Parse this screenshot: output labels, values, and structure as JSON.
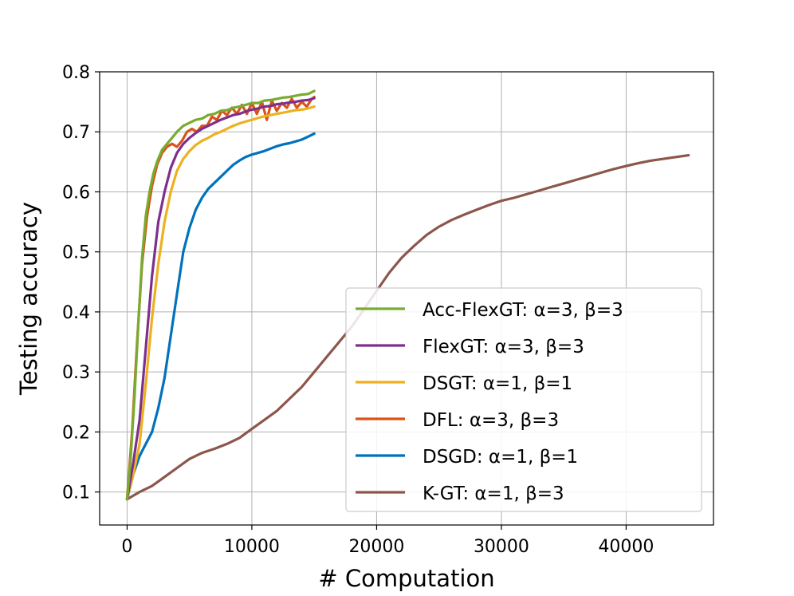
{
  "chart_data": {
    "type": "line",
    "title": "",
    "xlabel": "# Computation",
    "ylabel": "Testing accuracy",
    "xlim": [
      -2200,
      47000
    ],
    "ylim": [
      0.045,
      0.8
    ],
    "xticks": [
      0,
      10000,
      20000,
      30000,
      40000
    ],
    "xtick_labels": [
      "0",
      "10000",
      "20000",
      "30000",
      "40000"
    ],
    "yticks": [
      0.1,
      0.2,
      0.3,
      0.4,
      0.5,
      0.6,
      0.7,
      0.8
    ],
    "ytick_labels": [
      "0.1",
      "0.2",
      "0.3",
      "0.4",
      "0.5",
      "0.6",
      "0.7",
      "0.8"
    ],
    "grid": true,
    "legend_position": "bottom-right",
    "series": [
      {
        "name": "Acc-FlexGT",
        "legend_label": "Acc-FlexGT: α=3, β=3",
        "color": "#77ac30",
        "x": [
          0,
          300,
          600,
          900,
          1200,
          1500,
          1800,
          2100,
          2400,
          2800,
          3200,
          3600,
          4000,
          4500,
          5000,
          5500,
          6000,
          6500,
          7000,
          7500,
          8000,
          8500,
          9000,
          9500,
          10000,
          10500,
          11000,
          11500,
          12000,
          12500,
          13000,
          13500,
          14000,
          14500,
          15000
        ],
        "y": [
          0.088,
          0.16,
          0.26,
          0.38,
          0.49,
          0.56,
          0.6,
          0.63,
          0.65,
          0.67,
          0.68,
          0.69,
          0.7,
          0.71,
          0.715,
          0.72,
          0.722,
          0.728,
          0.73,
          0.735,
          0.736,
          0.74,
          0.742,
          0.745,
          0.748,
          0.748,
          0.752,
          0.753,
          0.755,
          0.757,
          0.758,
          0.76,
          0.762,
          0.763,
          0.768
        ]
      },
      {
        "name": "FlexGT",
        "legend_label": "FlexGT: α=3, β=3",
        "color": "#7e2f8e",
        "x": [
          0,
          500,
          1000,
          1500,
          2000,
          2500,
          3000,
          3500,
          4000,
          4500,
          5000,
          5500,
          6000,
          6500,
          7000,
          7500,
          8000,
          8500,
          9000,
          9500,
          10000,
          10500,
          11000,
          11500,
          12000,
          12500,
          13000,
          13500,
          14000,
          14500,
          15000
        ],
        "y": [
          0.088,
          0.15,
          0.22,
          0.34,
          0.46,
          0.55,
          0.6,
          0.64,
          0.665,
          0.68,
          0.69,
          0.698,
          0.705,
          0.71,
          0.715,
          0.72,
          0.724,
          0.728,
          0.73,
          0.734,
          0.737,
          0.739,
          0.742,
          0.743,
          0.746,
          0.747,
          0.749,
          0.75,
          0.752,
          0.753,
          0.756
        ]
      },
      {
        "name": "DSGT",
        "legend_label": "DSGT: α=1, β=1",
        "color": "#edb120",
        "x": [
          0,
          500,
          1000,
          1500,
          2000,
          2500,
          3000,
          3500,
          4000,
          4500,
          5000,
          5500,
          6000,
          6500,
          7000,
          7500,
          8000,
          8500,
          9000,
          9500,
          10000,
          10500,
          11000,
          11500,
          12000,
          12500,
          13000,
          13500,
          14000,
          14500,
          15000
        ],
        "y": [
          0.088,
          0.13,
          0.18,
          0.28,
          0.39,
          0.48,
          0.55,
          0.6,
          0.635,
          0.655,
          0.668,
          0.678,
          0.685,
          0.69,
          0.696,
          0.7,
          0.705,
          0.71,
          0.714,
          0.717,
          0.72,
          0.723,
          0.726,
          0.728,
          0.73,
          0.732,
          0.734,
          0.736,
          0.737,
          0.739,
          0.742
        ]
      },
      {
        "name": "DFL",
        "legend_label": "DFL: α=3, β=3",
        "color": "#d95319",
        "x": [
          0,
          400,
          800,
          1200,
          1600,
          2000,
          2400,
          2800,
          3200,
          3600,
          4000,
          4400,
          4800,
          5200,
          5600,
          6000,
          6400,
          6800,
          7200,
          7600,
          8000,
          8400,
          8800,
          9200,
          9600,
          10000,
          10400,
          10800,
          11200,
          11600,
          12000,
          12400,
          12800,
          13200,
          13600,
          14000,
          14400,
          14800,
          15000
        ],
        "y": [
          0.088,
          0.2,
          0.35,
          0.48,
          0.56,
          0.61,
          0.645,
          0.665,
          0.675,
          0.68,
          0.675,
          0.685,
          0.7,
          0.705,
          0.7,
          0.71,
          0.71,
          0.725,
          0.72,
          0.735,
          0.728,
          0.74,
          0.73,
          0.745,
          0.73,
          0.748,
          0.73,
          0.75,
          0.72,
          0.752,
          0.735,
          0.748,
          0.74,
          0.755,
          0.74,
          0.75,
          0.742,
          0.755,
          0.758
        ]
      },
      {
        "name": "DSGD",
        "legend_label": "DSGD: α=1, β=1",
        "color": "#0072bd",
        "x": [
          0,
          500,
          1000,
          1500,
          2000,
          2500,
          3000,
          3500,
          4000,
          4500,
          5000,
          5500,
          6000,
          6500,
          7000,
          7500,
          8000,
          8500,
          9000,
          9500,
          10000,
          10500,
          11000,
          11500,
          12000,
          12500,
          13000,
          13500,
          14000,
          14500,
          15000
        ],
        "y": [
          0.088,
          0.13,
          0.16,
          0.18,
          0.2,
          0.24,
          0.29,
          0.36,
          0.43,
          0.5,
          0.54,
          0.57,
          0.59,
          0.605,
          0.615,
          0.625,
          0.635,
          0.645,
          0.652,
          0.658,
          0.662,
          0.665,
          0.668,
          0.672,
          0.676,
          0.679,
          0.681,
          0.684,
          0.687,
          0.692,
          0.697
        ]
      },
      {
        "name": "K-GT",
        "legend_label": "K-GT: α=1, β=3",
        "color": "#8c564b",
        "x": [
          0,
          1000,
          2000,
          3000,
          4000,
          5000,
          6000,
          7000,
          8000,
          9000,
          10000,
          11000,
          12000,
          13000,
          14000,
          15000,
          16000,
          17000,
          18000,
          19000,
          20000,
          21000,
          22000,
          23000,
          24000,
          25000,
          26000,
          27000,
          28000,
          29000,
          30000,
          31000,
          32000,
          33000,
          34000,
          35000,
          36000,
          37000,
          38000,
          39000,
          40000,
          41000,
          42000,
          43000,
          44000,
          45000
        ],
        "y": [
          0.088,
          0.1,
          0.11,
          0.125,
          0.14,
          0.155,
          0.165,
          0.172,
          0.18,
          0.19,
          0.205,
          0.22,
          0.235,
          0.255,
          0.275,
          0.3,
          0.325,
          0.35,
          0.375,
          0.405,
          0.435,
          0.465,
          0.49,
          0.51,
          0.528,
          0.542,
          0.553,
          0.562,
          0.57,
          0.578,
          0.585,
          0.59,
          0.596,
          0.602,
          0.608,
          0.614,
          0.62,
          0.626,
          0.632,
          0.638,
          0.643,
          0.648,
          0.652,
          0.655,
          0.658,
          0.661
        ]
      }
    ]
  }
}
